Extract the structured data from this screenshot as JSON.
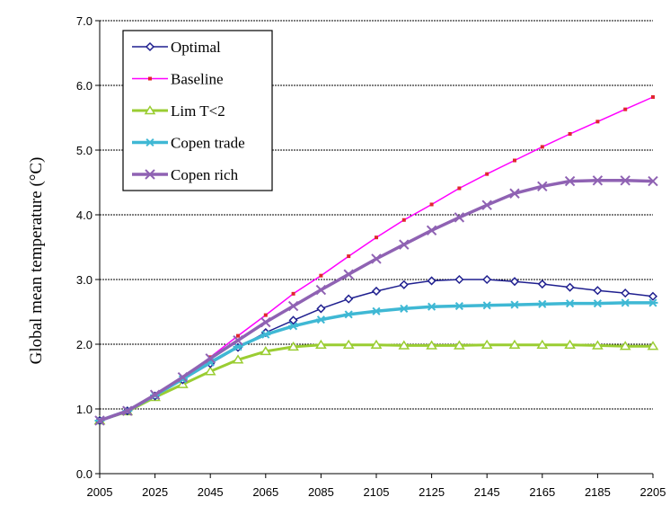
{
  "chart_data": {
    "type": "line",
    "title": "",
    "xlabel": "",
    "ylabel": "Global mean temperature (°C)",
    "xlim": [
      2005,
      2205
    ],
    "ylim": [
      0,
      7
    ],
    "x_ticks": [
      "2005",
      "2025",
      "2045",
      "2065",
      "2085",
      "2105",
      "2125",
      "2145",
      "2165",
      "2185",
      "2205"
    ],
    "y_ticks": [
      "0.0",
      "1.0",
      "2.0",
      "3.0",
      "4.0",
      "5.0",
      "6.0",
      "7.0"
    ],
    "grid": "horizontal",
    "legend_position": "top-left",
    "series": [
      {
        "name": "Optimal",
        "color": "#1f1f8f",
        "marker": "diamond",
        "x": [
          2005,
          2015,
          2025,
          2035,
          2045,
          2055,
          2065,
          2075,
          2085,
          2095,
          2105,
          2115,
          2125,
          2135,
          2145,
          2155,
          2165,
          2175,
          2185,
          2195,
          2205
        ],
        "values": [
          0.82,
          0.97,
          1.2,
          1.45,
          1.7,
          1.95,
          2.18,
          2.37,
          2.55,
          2.7,
          2.82,
          2.92,
          2.98,
          3.0,
          3.0,
          2.97,
          2.93,
          2.88,
          2.83,
          2.79,
          2.74
        ]
      },
      {
        "name": "Baseline",
        "color": "#ff00ff",
        "marker": "square",
        "x": [
          2005,
          2015,
          2025,
          2035,
          2045,
          2055,
          2065,
          2075,
          2085,
          2095,
          2105,
          2115,
          2125,
          2135,
          2145,
          2155,
          2165,
          2175,
          2185,
          2195,
          2205
        ],
        "values": [
          0.82,
          0.97,
          1.22,
          1.48,
          1.8,
          2.13,
          2.45,
          2.78,
          3.06,
          3.36,
          3.65,
          3.92,
          4.16,
          4.41,
          4.63,
          4.84,
          5.05,
          5.25,
          5.44,
          5.63,
          5.82
        ]
      },
      {
        "name": "Lim T<2",
        "color": "#9acd32",
        "marker": "triangle",
        "x": [
          2005,
          2015,
          2025,
          2035,
          2045,
          2055,
          2065,
          2075,
          2085,
          2095,
          2105,
          2115,
          2125,
          2135,
          2145,
          2155,
          2165,
          2175,
          2185,
          2195,
          2205
        ],
        "values": [
          0.82,
          0.96,
          1.18,
          1.38,
          1.58,
          1.76,
          1.89,
          1.96,
          1.99,
          1.99,
          1.99,
          1.98,
          1.98,
          1.98,
          1.99,
          1.99,
          1.99,
          1.99,
          1.98,
          1.97,
          1.97
        ]
      },
      {
        "name": "Copen trade",
        "color": "#3fb8d4",
        "marker": "asterisk",
        "x": [
          2005,
          2015,
          2025,
          2035,
          2045,
          2055,
          2065,
          2075,
          2085,
          2095,
          2105,
          2115,
          2125,
          2135,
          2145,
          2155,
          2165,
          2175,
          2185,
          2195,
          2205
        ],
        "values": [
          0.82,
          0.97,
          1.21,
          1.46,
          1.72,
          1.96,
          2.15,
          2.28,
          2.38,
          2.46,
          2.51,
          2.55,
          2.58,
          2.59,
          2.6,
          2.61,
          2.62,
          2.63,
          2.63,
          2.64,
          2.64
        ]
      },
      {
        "name": "Copen rich",
        "color": "#8f62b3",
        "marker": "x",
        "x": [
          2005,
          2015,
          2025,
          2035,
          2045,
          2055,
          2065,
          2075,
          2085,
          2095,
          2105,
          2115,
          2125,
          2135,
          2145,
          2155,
          2165,
          2175,
          2185,
          2195,
          2205
        ],
        "values": [
          0.82,
          0.97,
          1.22,
          1.49,
          1.78,
          2.06,
          2.34,
          2.59,
          2.84,
          3.08,
          3.32,
          3.54,
          3.76,
          3.96,
          4.15,
          4.33,
          4.44,
          4.52,
          4.53,
          4.53,
          4.52
        ]
      }
    ]
  }
}
